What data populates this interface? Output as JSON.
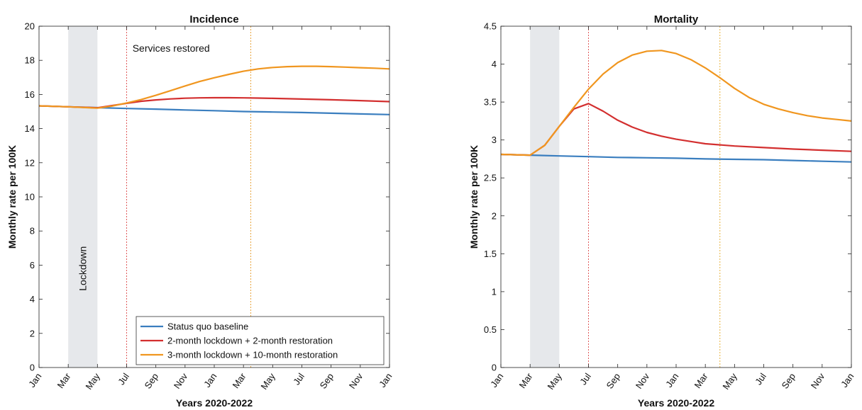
{
  "chart_data": [
    {
      "type": "line",
      "title": "Incidence",
      "xlabel": "Years 2020-2022",
      "ylabel": "Monthly rate per 100K",
      "x_tick_labels": [
        "Jan",
        "Mar",
        "May",
        "Jul",
        "Sep",
        "Nov",
        "Jan",
        "Mar",
        "May",
        "Jul",
        "Sep",
        "Nov",
        "Jan"
      ],
      "x_month_index": [
        0,
        24
      ],
      "ylim": [
        0,
        20
      ],
      "yticks": [
        0,
        2,
        4,
        6,
        8,
        10,
        12,
        14,
        16,
        18,
        20
      ],
      "grid": false,
      "legend_position": "bottom-right",
      "shaded_regions": [
        {
          "x0": 2,
          "x1": 4,
          "label": "Lockdown",
          "color": "#e6e8eb"
        }
      ],
      "vlines": [
        {
          "x": 6,
          "color": "#e05a5a"
        },
        {
          "x": 14.5,
          "color": "#e8a33a"
        }
      ],
      "annotations": [
        {
          "text": "Services restored",
          "x": 6.4,
          "y": 18.5
        }
      ],
      "series": [
        {
          "name": "Status quo baseline",
          "color": "#3a7ebf",
          "x": [
            0,
            2,
            4,
            6,
            8,
            10,
            12,
            14,
            16,
            18,
            20,
            22,
            24
          ],
          "y": [
            15.33,
            15.28,
            15.23,
            15.18,
            15.14,
            15.09,
            15.05,
            15.0,
            14.97,
            14.94,
            14.9,
            14.86,
            14.82
          ]
        },
        {
          "name": "2-month lockdown + 2-month restoration",
          "color": "#d32f2f",
          "x": [
            0,
            2,
            4,
            5,
            6,
            7,
            8,
            9,
            10,
            11,
            12,
            13,
            14,
            15,
            16,
            18,
            20,
            22,
            24
          ],
          "y": [
            15.33,
            15.28,
            15.22,
            15.35,
            15.48,
            15.6,
            15.68,
            15.74,
            15.78,
            15.8,
            15.81,
            15.81,
            15.8,
            15.79,
            15.77,
            15.73,
            15.69,
            15.64,
            15.58
          ]
        },
        {
          "name": "3-month lockdown + 10-month restoration",
          "color": "#f0961f",
          "x": [
            0,
            2,
            4,
            5,
            6,
            7,
            8,
            9,
            10,
            11,
            12,
            13,
            14,
            15,
            16,
            17,
            18,
            19,
            20,
            21,
            22,
            23,
            24
          ],
          "y": [
            15.33,
            15.28,
            15.2,
            15.32,
            15.5,
            15.7,
            15.95,
            16.22,
            16.5,
            16.76,
            16.98,
            17.18,
            17.36,
            17.5,
            17.58,
            17.63,
            17.65,
            17.65,
            17.63,
            17.6,
            17.57,
            17.54,
            17.5
          ]
        }
      ]
    },
    {
      "type": "line",
      "title": "Mortality",
      "xlabel": "Years 2020-2022",
      "ylabel": "Monthly rate per 100K",
      "x_tick_labels": [
        "Jan",
        "Mar",
        "May",
        "Jul",
        "Sep",
        "Nov",
        "Jan",
        "Mar",
        "May",
        "Jul",
        "Sep",
        "Nov",
        "Jan"
      ],
      "x_month_index": [
        0,
        24
      ],
      "ylim": [
        0,
        4.5
      ],
      "yticks": [
        0,
        0.5,
        1,
        1.5,
        2,
        2.5,
        3,
        3.5,
        4,
        4.5
      ],
      "grid": false,
      "shaded_regions": [
        {
          "x0": 2,
          "x1": 4,
          "color": "#e6e8eb"
        }
      ],
      "vlines": [
        {
          "x": 6,
          "color": "#e05a5a"
        },
        {
          "x": 15,
          "color": "#e8b23a"
        }
      ],
      "series": [
        {
          "name": "Status quo baseline",
          "color": "#3a7ebf",
          "x": [
            0,
            2,
            4,
            6,
            8,
            10,
            12,
            14,
            16,
            18,
            20,
            22,
            24
          ],
          "y": [
            2.81,
            2.8,
            2.79,
            2.78,
            2.77,
            2.765,
            2.76,
            2.75,
            2.745,
            2.74,
            2.73,
            2.72,
            2.71
          ]
        },
        {
          "name": "2-month lockdown + 2-month restoration",
          "color": "#d32f2f",
          "x": [
            0,
            2,
            3,
            4,
            5,
            6,
            7,
            8,
            9,
            10,
            11,
            12,
            13,
            14,
            16,
            18,
            20,
            22,
            24
          ],
          "y": [
            2.81,
            2.8,
            2.93,
            3.18,
            3.41,
            3.48,
            3.38,
            3.26,
            3.17,
            3.1,
            3.05,
            3.01,
            2.98,
            2.95,
            2.92,
            2.9,
            2.88,
            2.865,
            2.85
          ]
        },
        {
          "name": "3-month lockdown + 10-month restoration",
          "color": "#f0961f",
          "x": [
            0,
            2,
            3,
            4,
            5,
            6,
            7,
            8,
            9,
            10,
            11,
            12,
            13,
            14,
            15,
            16,
            17,
            18,
            19,
            20,
            21,
            22,
            23,
            24
          ],
          "y": [
            2.81,
            2.8,
            2.93,
            3.18,
            3.43,
            3.67,
            3.87,
            4.02,
            4.12,
            4.17,
            4.18,
            4.14,
            4.06,
            3.95,
            3.82,
            3.68,
            3.56,
            3.47,
            3.41,
            3.36,
            3.32,
            3.29,
            3.27,
            3.25
          ]
        }
      ]
    }
  ]
}
